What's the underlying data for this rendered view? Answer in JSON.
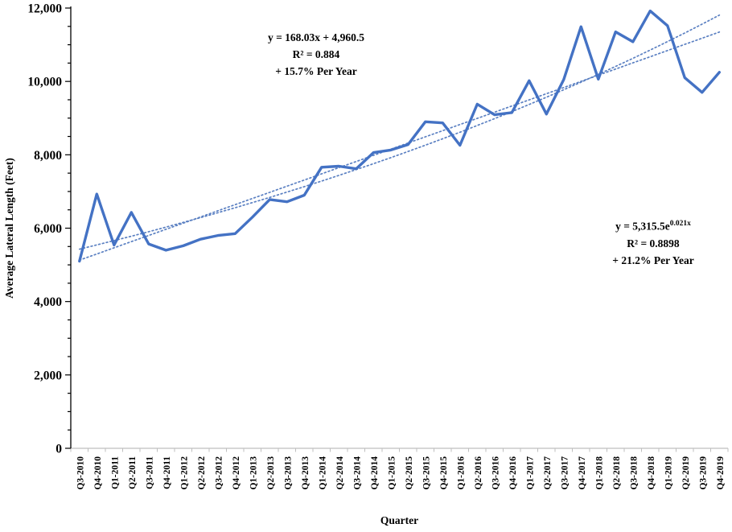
{
  "colors": {
    "series": "#4472C4",
    "trendline": "#5b80c2",
    "axis_black": "#000000",
    "axis_gray": "#bfbfbf",
    "text": "#000000",
    "background": "#ffffff"
  },
  "annotations": {
    "linear": {
      "line1": "y = 168.03x + 4,960.5",
      "line2": "R² = 0.884",
      "line3": "+ 15.7% Per Year"
    },
    "exponential": {
      "line1_base": "y = 5,315.5e",
      "line1_sup": "0.021x",
      "line2": "R² = 0.8898",
      "line3": "+ 21.2% Per Year"
    }
  },
  "chart_data": {
    "type": "line",
    "title": "",
    "xlabel": "Quarter",
    "ylabel": "Average Lateral Length (Feet)",
    "ylim": [
      0,
      12000
    ],
    "y_major_step": 2000,
    "y_minor_step": 500,
    "grid": false,
    "legend": "none",
    "y_tick_labels": [
      "0",
      "2,000",
      "4,000",
      "6,000",
      "8,000",
      "10,000",
      "12,000"
    ],
    "categories": [
      "Q3-2010",
      "Q4-2010",
      "Q1-2011",
      "Q2-2011",
      "Q3-2011",
      "Q4-2011",
      "Q1-2012",
      "Q2-2012",
      "Q3-2012",
      "Q4-2012",
      "Q1-2013",
      "Q2-2013",
      "Q3-2013",
      "Q4-2013",
      "Q1-2014",
      "Q2-2014",
      "Q3-2014",
      "Q4-2014",
      "Q1-2015",
      "Q2-2015",
      "Q3-2015",
      "Q4-2015",
      "Q1-2016",
      "Q2-2016",
      "Q3-2016",
      "Q4-2016",
      "Q1-2017",
      "Q2-2017",
      "Q3-2017",
      "Q4-2017",
      "Q1-2018",
      "Q2-2018",
      "Q3-2018",
      "Q4-2018",
      "Q1-2019",
      "Q2-2019",
      "Q3-2019",
      "Q4-2019"
    ],
    "series": [
      {
        "name": "Average Lateral Length",
        "values": [
          5100,
          6930,
          5540,
          6430,
          5570,
          5400,
          5520,
          5700,
          5800,
          5850,
          6300,
          6780,
          6720,
          6900,
          7660,
          7690,
          7620,
          8060,
          8130,
          8280,
          8900,
          8870,
          8260,
          9380,
          9090,
          9150,
          10020,
          9110,
          10050,
          11490,
          10060,
          11350,
          11080,
          11920,
          11520,
          10100,
          9700,
          10250
        ]
      }
    ],
    "trendlines": [
      {
        "kind": "linear",
        "slope": 168.03,
        "intercept": 4960.5,
        "r2": 0.884,
        "growth": "+ 15.7% Per Year"
      },
      {
        "kind": "exponential",
        "coef": 5315.5,
        "exponent": 0.021,
        "r2": 0.8898,
        "growth": "+ 21.2% Per Year"
      }
    ]
  }
}
